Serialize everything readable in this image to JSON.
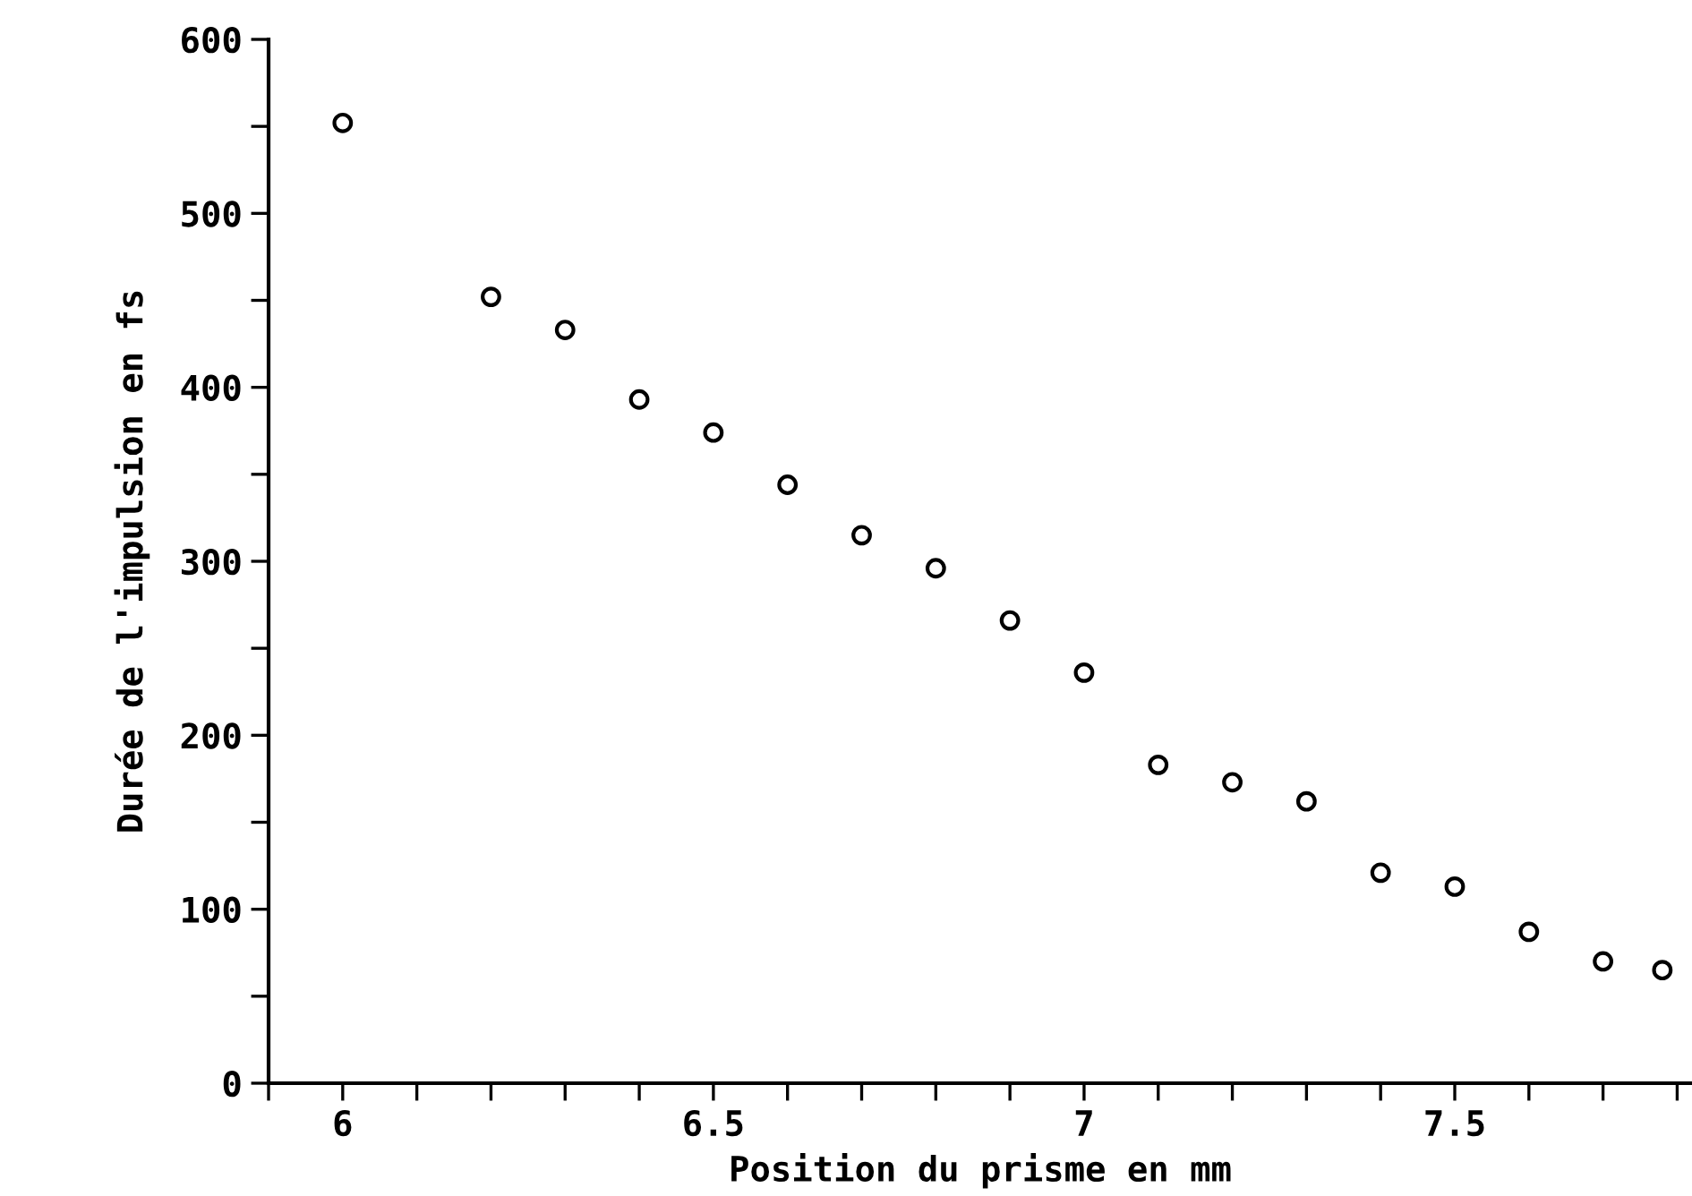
{
  "chart_data": {
    "type": "scatter",
    "xlabel": "Position du prisme en mm",
    "ylabel": "Durée de l'impulsion en fs",
    "x": [
      6.0,
      6.2,
      6.3,
      6.4,
      6.5,
      6.6,
      6.7,
      6.8,
      6.9,
      7.0,
      7.1,
      7.2,
      7.3,
      7.4,
      7.5,
      7.6,
      7.7,
      7.78
    ],
    "values": [
      552,
      452,
      433,
      393,
      374,
      344,
      315,
      296,
      266,
      236,
      183,
      173,
      162,
      121,
      113,
      87,
      70,
      65
    ],
    "color": "#000000",
    "marker": "circle",
    "grid": false,
    "legend": false,
    "xlim": [
      5.9,
      7.82
    ],
    "xticks": [
      {
        "value": 5.9,
        "label": null
      },
      6,
      {
        "value": 6.1,
        "label": null
      },
      {
        "value": 6.2,
        "label": null
      },
      {
        "value": 6.3,
        "label": null
      },
      {
        "value": 6.4,
        "label": null
      },
      6.5,
      {
        "value": 6.6,
        "label": null
      },
      {
        "value": 6.7,
        "label": null
      },
      {
        "value": 6.8,
        "label": null
      },
      {
        "value": 6.9,
        "label": null
      },
      7,
      {
        "value": 7.1,
        "label": null
      },
      {
        "value": 7.2,
        "label": null
      },
      {
        "value": 7.3,
        "label": null
      },
      {
        "value": 7.4,
        "label": null
      },
      7.5,
      {
        "value": 7.6,
        "label": null
      },
      {
        "value": 7.7,
        "label": null
      },
      {
        "value": 7.8,
        "label": null
      }
    ],
    "ylim": [
      0,
      600
    ],
    "yticks": [
      0,
      {
        "value": 50,
        "label": null
      },
      100,
      {
        "value": 150,
        "label": null
      },
      200,
      {
        "value": 250,
        "label": null
      },
      300,
      {
        "value": 350,
        "label": null
      },
      400,
      {
        "value": 450,
        "label": null
      },
      500,
      {
        "value": 550,
        "label": null
      },
      600
    ]
  }
}
